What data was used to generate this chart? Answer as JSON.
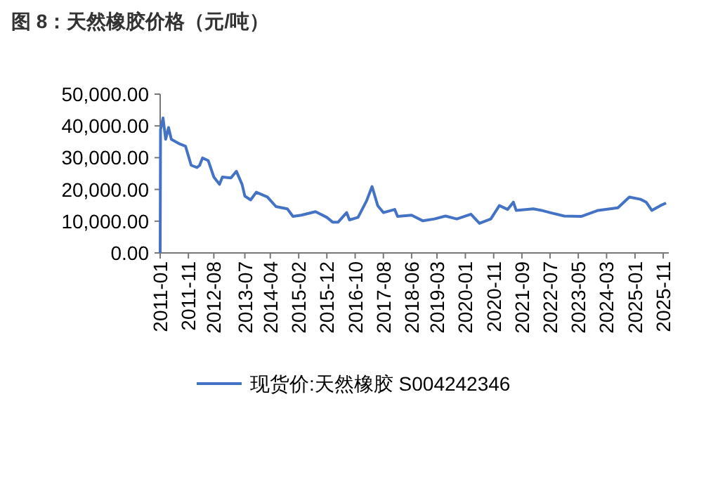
{
  "chart_data": {
    "type": "line",
    "title": "图 8：天然橡胶价格（元/吨）",
    "x": [
      "2011-01-01",
      "2011-01-05",
      "2011-02-01",
      "2011-03-01",
      "2011-04-01",
      "2011-05-01",
      "2011-08-01",
      "2011-10-01",
      "2011-12-01",
      "2012-02-01",
      "2012-03-01",
      "2012-04-01",
      "2012-06-01",
      "2012-08-01",
      "2012-10-01",
      "2012-11-01",
      "2013-02-01",
      "2013-04-01",
      "2013-06-01",
      "2013-07-01",
      "2013-09-01",
      "2013-11-01",
      "2014-03-01",
      "2014-06-01",
      "2014-10-01",
      "2014-12-01",
      "2015-03-01",
      "2015-08-01",
      "2015-12-01",
      "2016-02-01",
      "2016-04-01",
      "2016-07-01",
      "2016-08-01",
      "2016-11-01",
      "2017-02-01",
      "2017-04-01",
      "2017-06-01",
      "2017-08-01",
      "2017-12-01",
      "2018-01-01",
      "2018-06-01",
      "2018-10-01",
      "2019-02-01",
      "2019-06-01",
      "2019-10-01",
      "2020-03-01",
      "2020-06-01",
      "2020-10-01",
      "2021-01-01",
      "2021-04-01",
      "2021-06-01",
      "2021-07-01",
      "2022-01-01",
      "2022-04-01",
      "2022-07-01",
      "2022-12-01",
      "2023-06-01",
      "2023-12-01",
      "2024-07-01",
      "2024-11-01",
      "2025-03-01",
      "2025-05-01",
      "2025-07-01",
      "2025-10-01",
      "2025-12-01"
    ],
    "series": [
      {
        "name": "现货价:天然橡胶 S004242346",
        "color": "#4472c4",
        "values": [
          0,
          38800,
          42500,
          35800,
          39500,
          35800,
          34300,
          33600,
          27600,
          26900,
          27600,
          29900,
          29100,
          23900,
          21600,
          23900,
          23600,
          25700,
          21600,
          17900,
          16700,
          19100,
          17600,
          14600,
          13900,
          11500,
          11900,
          13000,
          11200,
          9700,
          9700,
          12700,
          10400,
          11200,
          16400,
          20900,
          14900,
          12700,
          13700,
          11500,
          11900,
          10100,
          10700,
          11600,
          10700,
          12200,
          9300,
          10700,
          14900,
          13700,
          16000,
          13400,
          13900,
          13400,
          12700,
          11600,
          11500,
          13400,
          14200,
          17600,
          16900,
          16000,
          13400,
          14900,
          15700
        ]
      }
    ],
    "xlim": [
      "2011-01-01",
      "2025-12-31"
    ],
    "xticks": [
      {
        "value": "2011-01-01",
        "label": "2011-01"
      },
      {
        "value": "2011-11-01",
        "label": "2011-11"
      },
      {
        "value": "2012-08-01",
        "label": "2012-08"
      },
      {
        "value": "2013-07-01",
        "label": "2013-07"
      },
      {
        "value": "2014-04-01",
        "label": "2014-04"
      },
      {
        "value": "2015-02-01",
        "label": "2015-02"
      },
      {
        "value": "2015-12-01",
        "label": "2015-12"
      },
      {
        "value": "2016-10-01",
        "label": "2016-10"
      },
      {
        "value": "2017-08-01",
        "label": "2017-08"
      },
      {
        "value": "2018-06-01",
        "label": "2018-06"
      },
      {
        "value": "2019-03-01",
        "label": "2019-03"
      },
      {
        "value": "2020-01-01",
        "label": "2020-01"
      },
      {
        "value": "2020-11-01",
        "label": "2020-11"
      },
      {
        "value": "2021-09-01",
        "label": "2021-09"
      },
      {
        "value": "2022-07-01",
        "label": "2022-07"
      },
      {
        "value": "2023-05-01",
        "label": "2023-05"
      },
      {
        "value": "2024-03-01",
        "label": "2024-03"
      },
      {
        "value": "2025-01-01",
        "label": "2025-01"
      },
      {
        "value": "2025-11-01",
        "label": "2025-11"
      }
    ],
    "ylim": [
      0,
      50000
    ],
    "yticks": [
      {
        "value": 0,
        "label": "0.00"
      },
      {
        "value": 10000,
        "label": "10,000.00"
      },
      {
        "value": 20000,
        "label": "20,000.00"
      },
      {
        "value": 30000,
        "label": "30,000.00"
      },
      {
        "value": 40000,
        "label": "40,000.00"
      },
      {
        "value": 50000,
        "label": "50,000.00"
      }
    ],
    "grid": false,
    "legend": "bottom",
    "marker": "none",
    "line_style": "solid"
  }
}
